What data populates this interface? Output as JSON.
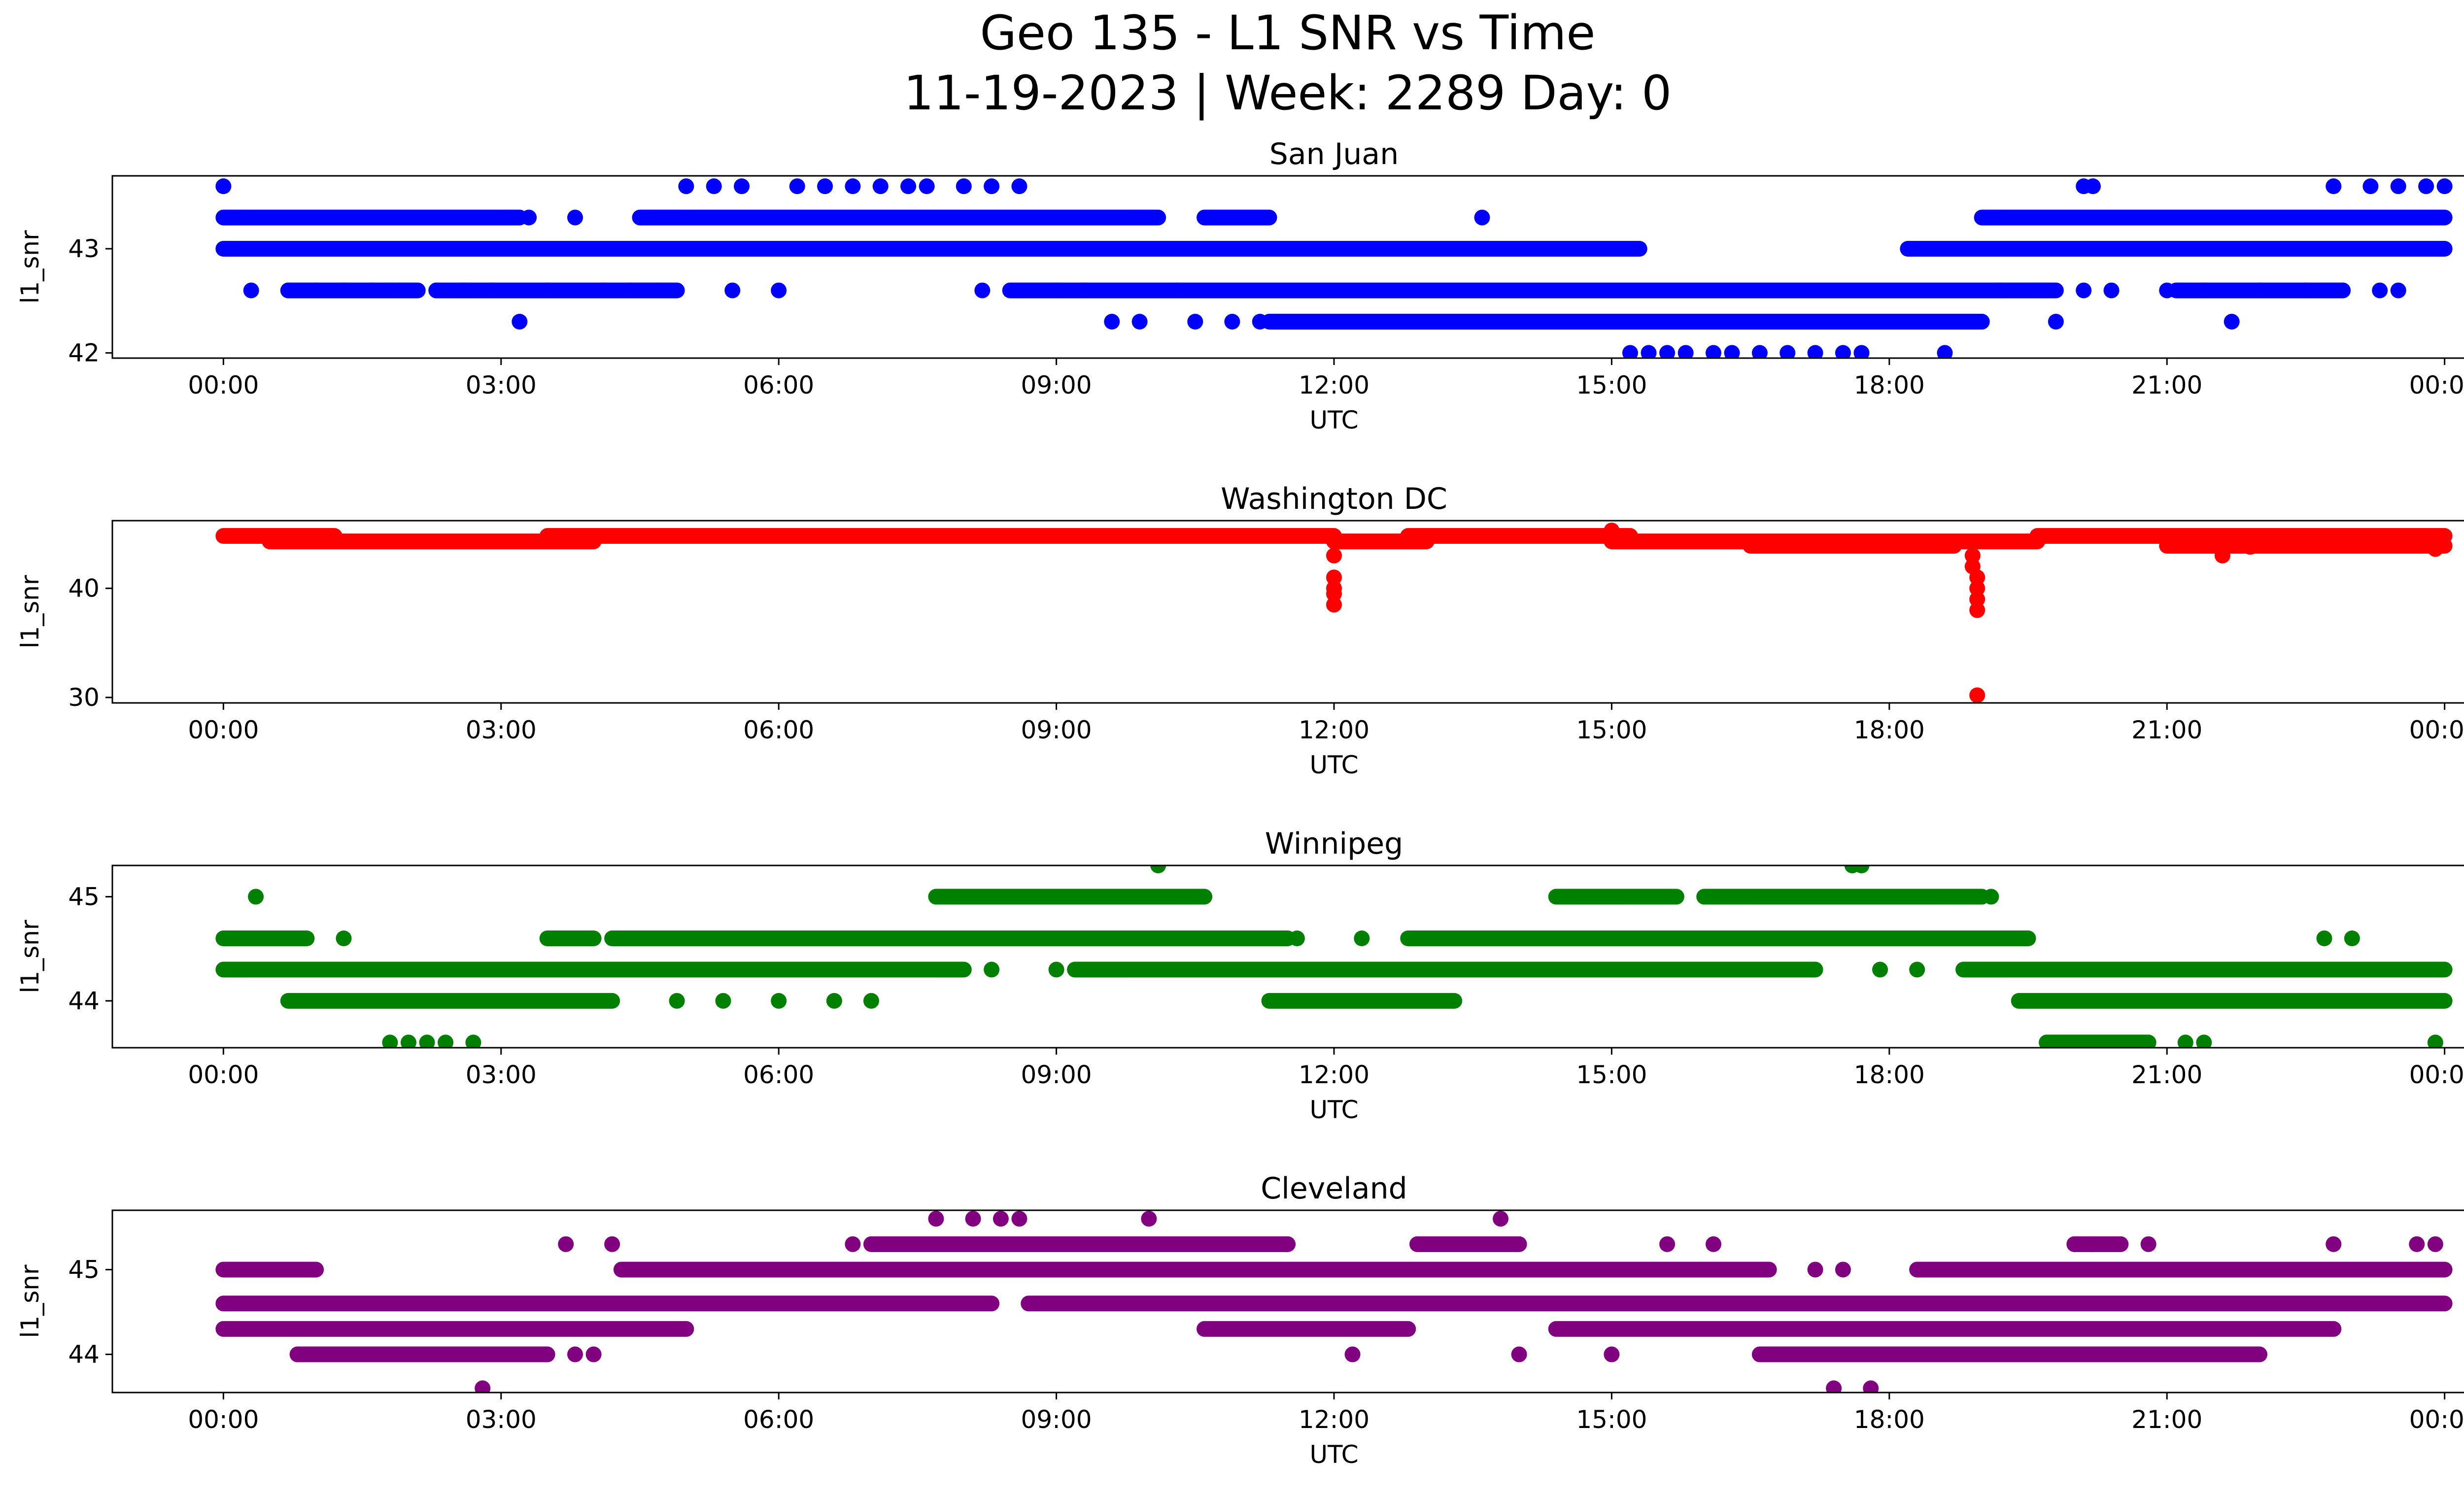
{
  "chart_data": {
    "title": "Geo 135 - L1 SNR vs Time",
    "subtitle": "11-19-2023 | Week: 2289 Day: 0",
    "type": "scatter",
    "x_tick_labels": [
      "00:00",
      "03:00",
      "06:00",
      "09:00",
      "12:00",
      "15:00",
      "18:00",
      "21:00",
      "00:00"
    ],
    "x_range_hours": [
      -1.2,
      25.2
    ],
    "panels": [
      {
        "title": "San Juan",
        "color": "#0000ff",
        "xlabel": "UTC",
        "ylabel": "l1_snr",
        "ylim": [
          41.95,
          43.7
        ],
        "yticks": [
          42,
          43
        ],
        "points": [
          [
            0.0,
            43.6
          ],
          [
            0.3,
            42.6
          ],
          [
            0.7,
            42.6
          ],
          [
            1.0,
            42.6
          ],
          [
            1.3,
            42.6
          ],
          [
            1.6,
            42.6
          ],
          [
            1.9,
            42.6
          ],
          [
            2.3,
            42.6
          ],
          [
            2.6,
            42.6
          ],
          [
            2.9,
            42.6
          ],
          [
            3.2,
            42.3
          ],
          [
            3.5,
            42.6
          ],
          [
            3.8,
            43.3
          ],
          [
            3.3,
            43.3
          ],
          [
            4.1,
            42.6
          ],
          [
            4.4,
            42.6
          ],
          [
            4.7,
            42.6
          ],
          [
            5.0,
            43.6
          ],
          [
            5.3,
            43.6
          ],
          [
            5.5,
            42.6
          ],
          [
            5.6,
            43.6
          ],
          [
            6.0,
            42.6
          ],
          [
            6.2,
            43.6
          ],
          [
            6.5,
            43.6
          ],
          [
            6.8,
            43.6
          ],
          [
            7.1,
            43.6
          ],
          [
            7.4,
            43.6
          ],
          [
            7.6,
            43.6
          ],
          [
            8.0,
            43.6
          ],
          [
            8.3,
            43.6
          ],
          [
            8.6,
            43.6
          ],
          [
            8.2,
            42.6
          ],
          [
            9.0,
            42.6
          ],
          [
            9.3,
            42.6
          ],
          [
            9.6,
            42.3
          ],
          [
            9.9,
            42.3
          ],
          [
            10.3,
            42.6
          ],
          [
            10.5,
            42.3
          ],
          [
            10.9,
            42.3
          ],
          [
            11.2,
            42.3
          ],
          [
            11.6,
            42.3
          ],
          [
            12.0,
            42.3
          ],
          [
            12.5,
            42.3
          ],
          [
            13.0,
            42.3
          ],
          [
            13.6,
            43.3
          ],
          [
            13.8,
            42.3
          ],
          [
            14.3,
            42.3
          ],
          [
            14.8,
            42.3
          ],
          [
            15.2,
            42.0
          ],
          [
            15.4,
            42.0
          ],
          [
            15.6,
            42.0
          ],
          [
            15.8,
            42.0
          ],
          [
            16.1,
            42.0
          ],
          [
            16.3,
            42.0
          ],
          [
            16.6,
            42.0
          ],
          [
            16.9,
            42.0
          ],
          [
            17.2,
            42.0
          ],
          [
            17.5,
            42.0
          ],
          [
            17.7,
            42.0
          ],
          [
            18.6,
            42.0
          ],
          [
            15.5,
            42.3
          ],
          [
            16.0,
            42.3
          ],
          [
            16.5,
            42.3
          ],
          [
            17.0,
            42.3
          ],
          [
            17.5,
            42.3
          ],
          [
            18.0,
            42.3
          ],
          [
            18.5,
            42.3
          ],
          [
            19.0,
            42.3
          ],
          [
            19.8,
            42.3
          ],
          [
            19.2,
            42.6
          ],
          [
            19.6,
            42.6
          ],
          [
            20.1,
            42.6
          ],
          [
            20.4,
            42.6
          ],
          [
            20.1,
            43.6
          ],
          [
            20.2,
            43.6
          ],
          [
            21.0,
            42.6
          ],
          [
            21.4,
            42.6
          ],
          [
            21.7,
            42.3
          ],
          [
            22.0,
            42.6
          ],
          [
            22.5,
            42.6
          ],
          [
            22.9,
            42.6
          ],
          [
            23.3,
            42.6
          ],
          [
            23.5,
            42.6
          ],
          [
            22.8,
            43.6
          ],
          [
            23.2,
            43.6
          ],
          [
            23.5,
            43.6
          ],
          [
            23.8,
            43.6
          ],
          [
            24.0,
            43.6
          ]
        ],
        "bands": [
          {
            "y": 43.3,
            "x_ranges": [
              [
                0.0,
                3.2
              ],
              [
                4.5,
                10.1
              ],
              [
                10.6,
                11.3
              ],
              [
                19.0,
                24.0
              ]
            ]
          },
          {
            "y": 43.0,
            "x_ranges": [
              [
                0.0,
                15.3
              ],
              [
                18.2,
                24.0
              ]
            ]
          },
          {
            "y": 42.6,
            "x_ranges": [
              [
                0.7,
                2.1
              ],
              [
                2.3,
                4.9
              ],
              [
                8.5,
                19.8
              ],
              [
                21.1,
                22.9
              ]
            ]
          },
          {
            "y": 42.3,
            "x_ranges": [
              [
                11.3,
                19.0
              ]
            ]
          }
        ]
      },
      {
        "title": "Washington DC",
        "color": "#ff0000",
        "xlabel": "UTC",
        "ylabel": "l1_snr",
        "ylim": [
          29.5,
          46.2
        ],
        "yticks": [
          30,
          40
        ],
        "points": [
          [
            12.0,
            43.0
          ],
          [
            12.0,
            41.0
          ],
          [
            12.0,
            40.0
          ],
          [
            12.0,
            39.5
          ],
          [
            12.0,
            38.5
          ],
          [
            18.9,
            43.0
          ],
          [
            18.9,
            42.0
          ],
          [
            18.95,
            41.0
          ],
          [
            18.95,
            40.0
          ],
          [
            18.95,
            39.0
          ],
          [
            18.95,
            38.0
          ],
          [
            18.95,
            30.2
          ],
          [
            21.6,
            43.0
          ],
          [
            21.9,
            43.8
          ],
          [
            23.9,
            43.6
          ],
          [
            15.0,
            45.3
          ]
        ],
        "bands": [
          {
            "y": 44.8,
            "x_ranges": [
              [
                0.0,
                1.2
              ],
              [
                3.5,
                12.0
              ],
              [
                12.8,
                15.2
              ],
              [
                19.6,
                24.0
              ]
            ]
          },
          {
            "y": 44.3,
            "x_ranges": [
              [
                0.5,
                4.0
              ],
              [
                12.0,
                13.0
              ],
              [
                15.0,
                19.6
              ]
            ]
          },
          {
            "y": 43.9,
            "x_ranges": [
              [
                16.5,
                18.7
              ],
              [
                21.0,
                24.0
              ]
            ]
          }
        ]
      },
      {
        "title": "Winnipeg",
        "color": "#008000",
        "xlabel": "UTC",
        "ylabel": "l1_snr",
        "ylim": [
          43.55,
          45.3
        ],
        "yticks": [
          44,
          45
        ],
        "points": [
          [
            0.35,
            45.0
          ],
          [
            1.3,
            44.6
          ],
          [
            1.8,
            43.6
          ],
          [
            2.2,
            43.6
          ],
          [
            2.7,
            43.6
          ],
          [
            2.0,
            43.6
          ],
          [
            2.4,
            43.6
          ],
          [
            4.9,
            44.0
          ],
          [
            5.4,
            44.0
          ],
          [
            6.0,
            44.0
          ],
          [
            6.6,
            44.0
          ],
          [
            7.0,
            44.0
          ],
          [
            8.3,
            44.3
          ],
          [
            9.0,
            44.3
          ],
          [
            10.1,
            45.3
          ],
          [
            11.6,
            44.6
          ],
          [
            12.3,
            44.6
          ],
          [
            17.6,
            45.3
          ],
          [
            17.7,
            45.3
          ],
          [
            17.9,
            44.3
          ],
          [
            18.3,
            44.3
          ],
          [
            19.1,
            45.0
          ],
          [
            23.9,
            43.6
          ],
          [
            23.0,
            44.6
          ],
          [
            22.7,
            44.6
          ],
          [
            21.2,
            43.6
          ],
          [
            21.4,
            43.6
          ]
        ],
        "bands": [
          {
            "y": 44.6,
            "x_ranges": [
              [
                0.0,
                0.9
              ],
              [
                3.5,
                4.0
              ],
              [
                4.2,
                11.5
              ],
              [
                12.8,
                19.5
              ]
            ]
          },
          {
            "y": 44.3,
            "x_ranges": [
              [
                0.0,
                8.0
              ],
              [
                9.2,
                17.2
              ],
              [
                18.8,
                24.0
              ]
            ]
          },
          {
            "y": 44.0,
            "x_ranges": [
              [
                0.7,
                4.2
              ],
              [
                11.3,
                13.3
              ],
              [
                19.4,
                24.0
              ]
            ]
          },
          {
            "y": 45.0,
            "x_ranges": [
              [
                7.7,
                10.6
              ],
              [
                14.4,
                15.7
              ],
              [
                16.0,
                19.0
              ]
            ]
          },
          {
            "y": 43.6,
            "x_ranges": [
              [
                19.7,
                20.8
              ]
            ]
          }
        ]
      },
      {
        "title": "Cleveland",
        "color": "#800080",
        "xlabel": "UTC",
        "ylabel": "l1_snr",
        "ylim": [
          43.55,
          45.7
        ],
        "yticks": [
          44,
          45
        ],
        "points": [
          [
            2.8,
            43.6
          ],
          [
            3.7,
            45.3
          ],
          [
            4.2,
            45.3
          ],
          [
            3.8,
            44.0
          ],
          [
            4.0,
            44.0
          ],
          [
            7.7,
            45.6
          ],
          [
            8.1,
            45.6
          ],
          [
            8.4,
            45.6
          ],
          [
            8.6,
            45.6
          ],
          [
            10.0,
            45.6
          ],
          [
            6.8,
            45.3
          ],
          [
            13.8,
            45.6
          ],
          [
            12.2,
            44.0
          ],
          [
            15.0,
            44.0
          ],
          [
            14.0,
            44.0
          ],
          [
            15.6,
            45.3
          ],
          [
            16.1,
            45.3
          ],
          [
            17.2,
            45.0
          ],
          [
            17.5,
            45.0
          ],
          [
            17.4,
            43.6
          ],
          [
            17.8,
            43.6
          ],
          [
            19.2,
            45.0
          ],
          [
            20.0,
            45.3
          ],
          [
            20.2,
            45.3
          ],
          [
            20.8,
            45.3
          ],
          [
            22.8,
            45.3
          ],
          [
            23.7,
            45.3
          ],
          [
            23.9,
            45.3
          ]
        ],
        "bands": [
          {
            "y": 45.0,
            "x_ranges": [
              [
                0.0,
                1.0
              ],
              [
                4.3,
                16.7
              ],
              [
                18.3,
                24.0
              ]
            ]
          },
          {
            "y": 44.6,
            "x_ranges": [
              [
                0.0,
                8.3
              ],
              [
                8.7,
                24.0
              ]
            ]
          },
          {
            "y": 44.3,
            "x_ranges": [
              [
                0.0,
                5.0
              ],
              [
                10.6,
                12.8
              ],
              [
                14.4,
                22.8
              ]
            ]
          },
          {
            "y": 44.0,
            "x_ranges": [
              [
                0.8,
                3.5
              ],
              [
                16.6,
                22.0
              ]
            ]
          },
          {
            "y": 45.3,
            "x_ranges": [
              [
                7.0,
                11.5
              ],
              [
                12.9,
                14.0
              ],
              [
                20.0,
                20.5
              ]
            ]
          }
        ]
      }
    ]
  }
}
